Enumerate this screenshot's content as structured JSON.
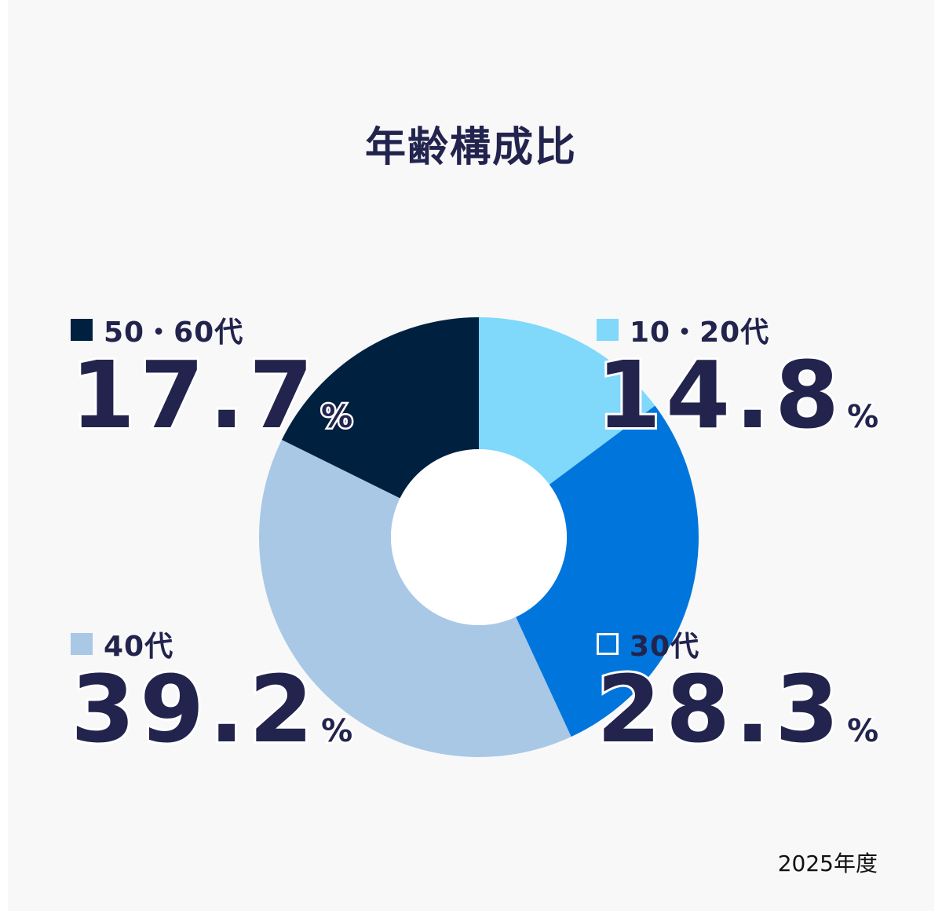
{
  "title": "年齢構成比",
  "footnote": "2025年度",
  "unit": "%",
  "colors": {
    "10-20": "#80d8fb",
    "30": "#0076dc",
    "40": "#a8c8e6",
    "50-60": "#00203f",
    "text": "#22244e"
  },
  "chart_data": {
    "type": "pie",
    "variant": "donut",
    "title": "年齢構成比",
    "categories": [
      "10・20代",
      "30代",
      "40代",
      "50・60代"
    ],
    "values": [
      14.8,
      28.3,
      39.2,
      17.7
    ],
    "value_labels": [
      "14.8",
      "28.3",
      "39.2",
      "17.7"
    ],
    "unit": "%",
    "colors": [
      "#80d8fb",
      "#0076dc",
      "#a8c8e6",
      "#00203f"
    ],
    "start": "top",
    "direction": "clockwise"
  }
}
